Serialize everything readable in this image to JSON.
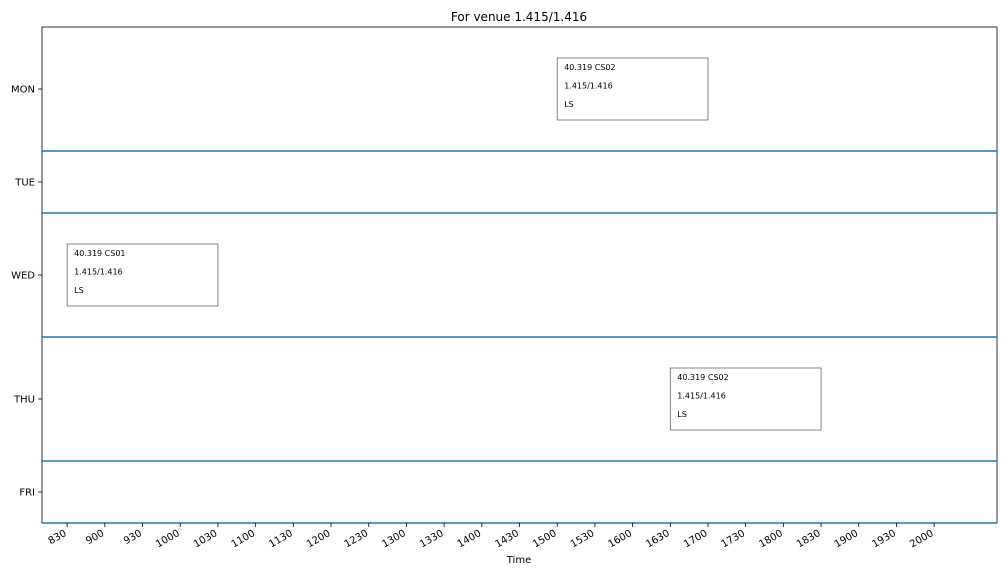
{
  "chart_data": {
    "type": "timetable",
    "title": "For venue 1.415/1.416",
    "xlabel": "Time",
    "ylabel": "",
    "x_ticks": [
      "830",
      "900",
      "930",
      "1000",
      "1030",
      "1100",
      "1130",
      "1200",
      "1230",
      "1300",
      "1330",
      "1400",
      "1430",
      "1500",
      "1530",
      "1600",
      "1630",
      "1700",
      "1730",
      "1800",
      "1830",
      "1900",
      "1930",
      "2000"
    ],
    "xlim": [
      810,
      2050
    ],
    "days": [
      {
        "label": "MON",
        "rows": 2
      },
      {
        "label": "TUE",
        "rows": 1
      },
      {
        "label": "WED",
        "rows": 2
      },
      {
        "label": "THU",
        "rows": 2
      },
      {
        "label": "FRI",
        "rows": 1
      }
    ],
    "separator_color": "#1f77b4",
    "events": [
      {
        "day": "MON",
        "start": 1500,
        "end": 1700,
        "lines": [
          "40.319 CS02",
          "1.415/1.416",
          "LS"
        ]
      },
      {
        "day": "WED",
        "start": 830,
        "end": 1030,
        "lines": [
          "40.319 CS01",
          "1.415/1.416",
          "LS"
        ]
      },
      {
        "day": "THU",
        "start": 1630,
        "end": 1830,
        "lines": [
          "40.319 CS02",
          "1.415/1.416",
          "LS"
        ]
      }
    ]
  }
}
